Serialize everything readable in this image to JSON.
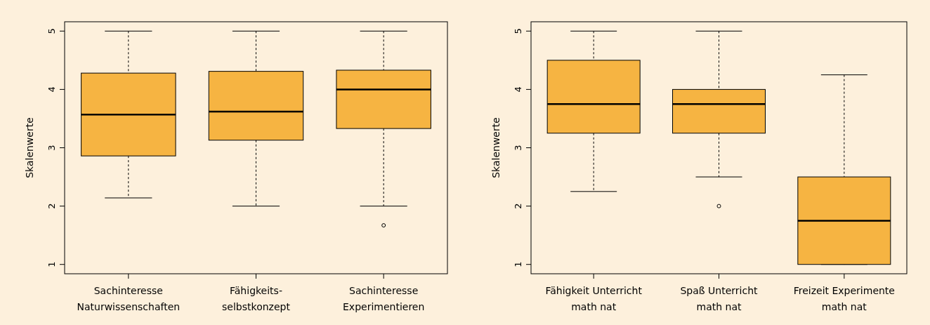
{
  "chart_data": [
    {
      "type": "box",
      "ylabel": "Skalenwerte",
      "categories": [
        "Sachinteresse\nNaturwissenschaften",
        "Fähigkeits-\nselbstkonzept",
        "Sachinteresse\nExperimentieren"
      ],
      "color": "#f6b442",
      "ylim": [
        0.84,
        5.16
      ],
      "yticks": [
        1,
        2,
        3,
        4,
        5
      ],
      "boxes": [
        {
          "low": 2.14,
          "q1": 2.86,
          "median": 3.57,
          "q3": 4.28,
          "high": 5
        },
        {
          "low": 2,
          "q1": 3.13,
          "median": 3.62,
          "q3": 4.31,
          "high": 5
        },
        {
          "low": 2,
          "q1": 3.33,
          "median": 4,
          "q3": 4.33,
          "high": 5,
          "outliers": [
            1.67
          ]
        }
      ]
    },
    {
      "type": "box",
      "ylabel": "Skalenwerte",
      "categories": [
        "Fähigkeit Unterricht\nmath nat",
        "Spaß Unterricht\nmath nat",
        "Freizeit Experimente\nmath nat"
      ],
      "color": "#f6b442",
      "ylim": [
        0.84,
        5.16
      ],
      "yticks": [
        1,
        2,
        3,
        4,
        5
      ],
      "boxes": [
        {
          "low": 2.25,
          "q1": 3.25,
          "median": 3.75,
          "q3": 4.5,
          "high": 5
        },
        {
          "low": 2.5,
          "q1": 3.25,
          "median": 3.75,
          "q3": 4,
          "high": 5,
          "outliers": [
            2
          ]
        },
        {
          "low": 1,
          "q1": 1,
          "median": 1.75,
          "q3": 2.5,
          "high": 4.25
        }
      ]
    }
  ]
}
